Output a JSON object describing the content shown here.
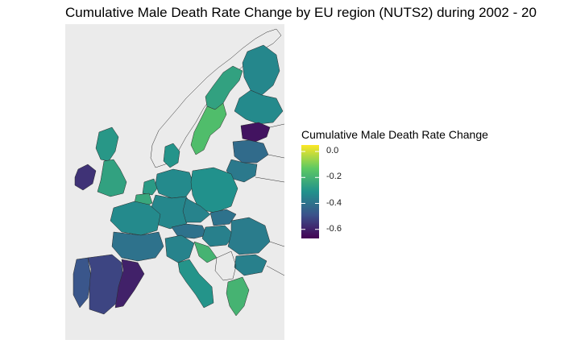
{
  "title": "Cumulative Male Death Rate Change by EU region (NUTS2) during 2002 - 20",
  "legend": {
    "title": "Cumulative Male Death Rate Change",
    "ticks": [
      {
        "label": "0.0",
        "value": 0.0
      },
      {
        "label": "-0.2",
        "value": -0.2
      },
      {
        "label": "-0.4",
        "value": -0.4
      },
      {
        "label": "-0.6",
        "value": -0.6
      }
    ],
    "range": [
      -0.67,
      0.05
    ],
    "colors": [
      "#440154",
      "#3b528b",
      "#21918c",
      "#5ec962",
      "#fde725"
    ]
  },
  "map": {
    "background": "#ebebeb",
    "regions": [
      {
        "id": "iceland",
        "value": null
      },
      {
        "id": "norway",
        "value": null
      },
      {
        "id": "sweden-north",
        "value": -0.26
      },
      {
        "id": "sweden-south",
        "value": -0.17
      },
      {
        "id": "finland-north",
        "value": -0.34
      },
      {
        "id": "finland-south",
        "value": -0.33
      },
      {
        "id": "estonia",
        "value": -0.63
      },
      {
        "id": "latvia",
        "value": -0.42
      },
      {
        "id": "lithuania",
        "value": -0.38
      },
      {
        "id": "ireland",
        "value": -0.56
      },
      {
        "id": "uk-north",
        "value": -0.29
      },
      {
        "id": "uk-south",
        "value": -0.26
      },
      {
        "id": "denmark",
        "value": -0.3
      },
      {
        "id": "netherlands",
        "value": -0.28
      },
      {
        "id": "belgium",
        "value": -0.24
      },
      {
        "id": "germany-north",
        "value": -0.33
      },
      {
        "id": "germany-south",
        "value": -0.34
      },
      {
        "id": "poland",
        "value": -0.31
      },
      {
        "id": "czechia",
        "value": -0.35
      },
      {
        "id": "slovakia",
        "value": -0.4
      },
      {
        "id": "austria",
        "value": -0.4
      },
      {
        "id": "hungary",
        "value": -0.36
      },
      {
        "id": "romania",
        "value": -0.37
      },
      {
        "id": "bulgaria",
        "value": -0.36
      },
      {
        "id": "france-north",
        "value": -0.33
      },
      {
        "id": "france-south",
        "value": -0.4
      },
      {
        "id": "portugal",
        "value": -0.48
      },
      {
        "id": "spain-center",
        "value": -0.52
      },
      {
        "id": "spain-east",
        "value": -0.6
      },
      {
        "id": "italy-north",
        "value": -0.35
      },
      {
        "id": "italy-south",
        "value": -0.3
      },
      {
        "id": "slovenia-croatia",
        "value": -0.2
      },
      {
        "id": "greece",
        "value": -0.2
      },
      {
        "id": "balkans",
        "value": null
      }
    ]
  }
}
